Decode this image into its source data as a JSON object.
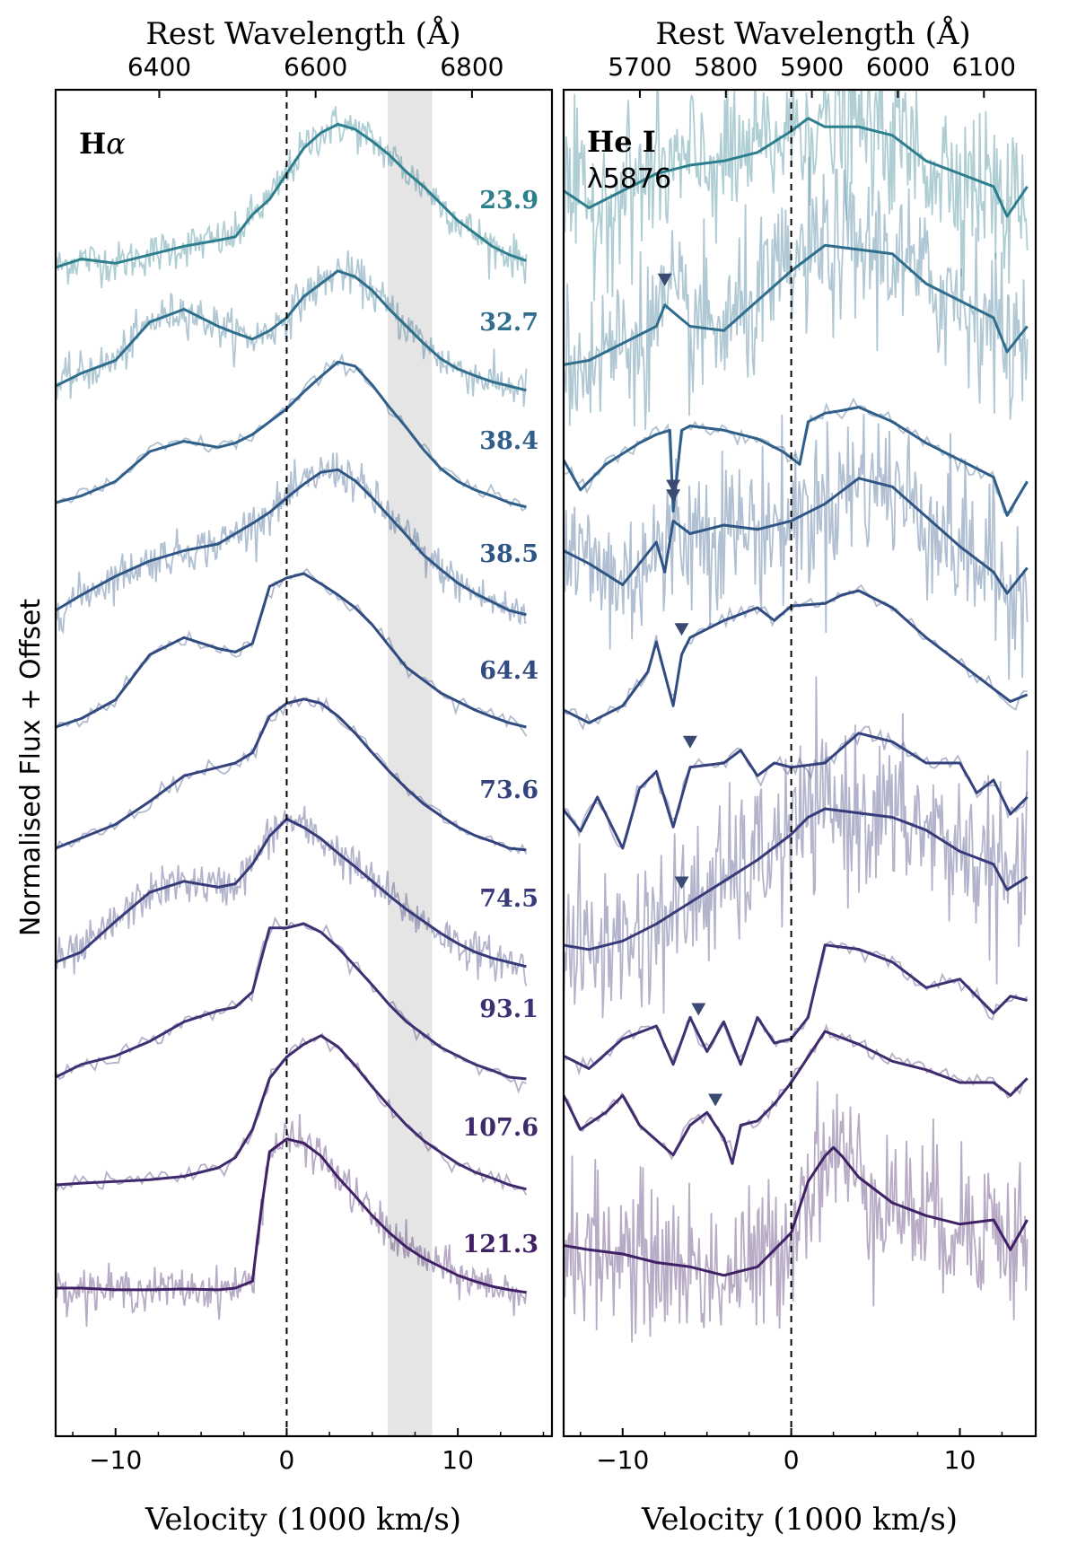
{
  "figure": {
    "ylabel": "Normalised Flux + Offset"
  },
  "chart_data": [
    {
      "type": "line",
      "panel": "left",
      "label_bold": "H",
      "label_italic": "α",
      "xlabel": "Velocity (1000 km/s)",
      "xlim": [
        -13.5,
        15.5
      ],
      "xticks": [
        -10,
        0,
        10
      ],
      "xticklabels": [
        "−10",
        "0",
        "10"
      ],
      "top_axis_title": "Rest Wavelength (Å)",
      "top_ticks": [
        6400,
        6600,
        6800
      ],
      "top_ticklabels": [
        "6400",
        "6600",
        "6800"
      ],
      "center_wavelength": 6563,
      "vline_velocity": 0,
      "shaded_band": [
        5.9,
        8.5
      ],
      "grid": false,
      "epochs": [
        "23.9",
        "32.7",
        "38.4",
        "38.5",
        "64.4",
        "73.6",
        "74.5",
        "93.1",
        "107.6",
        "121.3"
      ],
      "colors": [
        "#2e7f8e",
        "#2f6e8d",
        "#2f5f8a",
        "#305686",
        "#324c82",
        "#34437d",
        "#373b79",
        "#3a3273",
        "#3e2a6d",
        "#412166"
      ],
      "noisy": [
        true,
        true,
        false,
        true,
        false,
        false,
        true,
        false,
        false,
        true
      ],
      "series": [
        {
          "name": "23.9",
          "x": [
            -13.5,
            -12,
            -10,
            -8,
            -6,
            -4,
            -3,
            -2,
            -1,
            0,
            1,
            2,
            3,
            4,
            5,
            6,
            7,
            8,
            9,
            10,
            11,
            12,
            13,
            14
          ],
          "y": [
            0.3,
            0.4,
            0.35,
            0.45,
            0.55,
            0.62,
            0.66,
            0.92,
            1.1,
            1.4,
            1.7,
            1.88,
            1.98,
            1.92,
            1.78,
            1.62,
            1.42,
            1.25,
            1.05,
            0.85,
            0.7,
            0.55,
            0.45,
            0.38
          ]
        },
        {
          "name": "32.7",
          "x": [
            -13.5,
            -12,
            -10,
            -8,
            -6,
            -4,
            -3,
            -2,
            -1,
            0,
            1,
            2,
            3,
            4,
            5,
            6,
            7,
            8,
            9,
            10,
            11,
            12,
            13,
            14
          ],
          "y": [
            0.3,
            0.45,
            0.6,
            1.05,
            1.2,
            1.0,
            0.92,
            0.85,
            0.95,
            1.1,
            1.35,
            1.5,
            1.65,
            1.58,
            1.42,
            1.2,
            1.0,
            0.8,
            0.62,
            0.5,
            0.42,
            0.35,
            0.3,
            0.25
          ]
        },
        {
          "name": "38.4",
          "x": [
            -13.5,
            -12,
            -10,
            -8,
            -6,
            -4,
            -3,
            -2,
            -1,
            0,
            1,
            2,
            3,
            4,
            5,
            6,
            7,
            8,
            9,
            10,
            11,
            12,
            13,
            14
          ],
          "y": [
            0.3,
            0.38,
            0.55,
            0.9,
            1.02,
            0.95,
            1.0,
            1.1,
            1.25,
            1.4,
            1.6,
            1.78,
            1.95,
            1.9,
            1.68,
            1.42,
            1.18,
            0.92,
            0.7,
            0.55,
            0.45,
            0.38,
            0.3,
            0.25
          ]
        },
        {
          "name": "38.5",
          "x": [
            -13.5,
            -12,
            -10,
            -8,
            -6,
            -4,
            -3,
            -2,
            -1,
            0,
            1,
            2,
            3,
            4,
            5,
            6,
            7,
            8,
            9,
            10,
            11,
            12,
            13,
            14
          ],
          "y": [
            0.3,
            0.48,
            0.7,
            0.88,
            1.0,
            1.08,
            1.2,
            1.32,
            1.45,
            1.62,
            1.78,
            1.92,
            1.95,
            1.82,
            1.62,
            1.4,
            1.18,
            0.95,
            0.78,
            0.62,
            0.5,
            0.4,
            0.3,
            0.25
          ]
        },
        {
          "name": "64.4",
          "x": [
            -13.5,
            -12,
            -10,
            -8,
            -6,
            -4,
            -3,
            -2,
            -1,
            0,
            1,
            2,
            3,
            4,
            5,
            6,
            7,
            8,
            9,
            10,
            11,
            12,
            13,
            14
          ],
          "y": [
            0.3,
            0.4,
            0.62,
            1.15,
            1.35,
            1.22,
            1.18,
            1.28,
            1.95,
            2.05,
            2.1,
            1.98,
            1.85,
            1.7,
            1.5,
            1.25,
            1.0,
            0.85,
            0.7,
            0.6,
            0.5,
            0.42,
            0.35,
            0.3
          ]
        },
        {
          "name": "73.6",
          "x": [
            -13.5,
            -12,
            -10,
            -8,
            -6,
            -4,
            -3,
            -2,
            -1,
            0,
            1,
            2,
            3,
            4,
            5,
            6,
            7,
            8,
            9,
            10,
            11,
            12,
            13,
            14
          ],
          "y": [
            0.3,
            0.42,
            0.58,
            0.85,
            1.15,
            1.25,
            1.3,
            1.42,
            1.85,
            2.0,
            2.05,
            2.0,
            1.85,
            1.65,
            1.42,
            1.2,
            1.0,
            0.82,
            0.68,
            0.55,
            0.45,
            0.38,
            0.3,
            0.28
          ]
        },
        {
          "name": "74.5",
          "x": [
            -13.5,
            -12,
            -10,
            -8,
            -6,
            -4,
            -3,
            -2,
            -1,
            0,
            1,
            2,
            3,
            4,
            5,
            6,
            7,
            8,
            9,
            10,
            11,
            12,
            13,
            14
          ],
          "y": [
            0.3,
            0.42,
            0.78,
            1.12,
            1.25,
            1.18,
            1.22,
            1.45,
            1.78,
            1.98,
            1.88,
            1.75,
            1.58,
            1.42,
            1.25,
            1.08,
            0.92,
            0.78,
            0.64,
            0.52,
            0.42,
            0.35,
            0.3,
            0.25
          ]
        },
        {
          "name": "93.1",
          "x": [
            -13.5,
            -12,
            -10,
            -8,
            -6,
            -4,
            -3,
            -2,
            -1,
            0,
            1,
            2,
            3,
            4,
            5,
            6,
            7,
            8,
            9,
            10,
            11,
            12,
            13,
            14
          ],
          "y": [
            0.3,
            0.45,
            0.55,
            0.72,
            0.95,
            1.08,
            1.12,
            1.3,
            2.05,
            2.05,
            2.1,
            2.0,
            1.82,
            1.6,
            1.38,
            1.15,
            0.95,
            0.8,
            0.65,
            0.55,
            0.45,
            0.38,
            0.3,
            0.28
          ]
        },
        {
          "name": "107.6",
          "x": [
            -13.5,
            -12,
            -10,
            -8,
            -6,
            -4,
            -3,
            -2,
            -1,
            0,
            1,
            2,
            3,
            4,
            5,
            6,
            7,
            8,
            9,
            10,
            11,
            12,
            13,
            14
          ],
          "y": [
            0.3,
            0.32,
            0.34,
            0.36,
            0.4,
            0.5,
            0.62,
            0.95,
            1.55,
            1.8,
            1.95,
            2.05,
            1.92,
            1.7,
            1.45,
            1.22,
            1.0,
            0.82,
            0.68,
            0.55,
            0.45,
            0.38,
            0.3,
            0.25
          ]
        },
        {
          "name": "121.3",
          "x": [
            -13.5,
            -12,
            -10,
            -8,
            -6,
            -4,
            -3,
            -2,
            -1.5,
            -1,
            0,
            1,
            2,
            3,
            4,
            5,
            6,
            7,
            8,
            9,
            10,
            11,
            12,
            13,
            14
          ],
          "y": [
            0.3,
            0.3,
            0.28,
            0.28,
            0.29,
            0.28,
            0.3,
            0.38,
            1.2,
            1.9,
            2.05,
            2.0,
            1.85,
            1.6,
            1.38,
            1.15,
            0.95,
            0.78,
            0.65,
            0.55,
            0.45,
            0.38,
            0.32,
            0.28,
            0.25
          ]
        }
      ]
    },
    {
      "type": "line",
      "panel": "right",
      "label_bold": "He I",
      "label_line2": "λ5876",
      "xlabel": "Velocity (1000 km/s)",
      "xlim": [
        -13.5,
        14.5
      ],
      "xticks": [
        -10,
        0,
        10
      ],
      "xticklabels": [
        "−10",
        "0",
        "10"
      ],
      "top_axis_title": "Rest Wavelength (Å)",
      "top_ticks": [
        5700,
        5800,
        5900,
        6000,
        6100
      ],
      "top_ticklabels": [
        "5700",
        "5800",
        "5900",
        "6000",
        "6100"
      ],
      "center_wavelength": 5876,
      "vline_velocity": 0,
      "grid": false,
      "epochs": [
        "23.9",
        "32.7",
        "38.4",
        "38.5",
        "64.4",
        "73.6",
        "74.5",
        "93.1",
        "107.6",
        "121.3"
      ],
      "colors": [
        "#2e7f8e",
        "#2f6e8d",
        "#2f5f8a",
        "#305686",
        "#324c82",
        "#34437d",
        "#373b79",
        "#3a3273",
        "#3e2a6d",
        "#412166"
      ],
      "noisy": [
        true,
        true,
        false,
        true,
        false,
        false,
        true,
        false,
        false,
        true
      ],
      "markers_velocity": [
        null,
        -7.5,
        -7.0,
        -7.0,
        -6.5,
        -6.0,
        -6.5,
        -5.5,
        -4.5,
        null
      ],
      "series": [
        {
          "name": "23.9",
          "x": [
            -13.5,
            -12,
            -10,
            -8,
            -6,
            -4,
            -2,
            0,
            1,
            2,
            4,
            6,
            8,
            10,
            12,
            12.8,
            14
          ],
          "y": [
            1.2,
            1.0,
            1.2,
            1.4,
            1.5,
            1.55,
            1.65,
            1.9,
            2.05,
            1.95,
            1.95,
            1.85,
            1.55,
            1.4,
            1.25,
            0.9,
            1.25
          ]
        },
        {
          "name": "32.7",
          "x": [
            -13.5,
            -12,
            -10,
            -8,
            -7.5,
            -6,
            -4,
            -2,
            0,
            2,
            4,
            6,
            8,
            10,
            12,
            12.8,
            14
          ],
          "y": [
            0.55,
            0.6,
            0.8,
            1.0,
            1.25,
            1.0,
            0.95,
            1.3,
            1.65,
            1.95,
            1.9,
            1.85,
            1.5,
            1.3,
            1.1,
            0.7,
            1.0
          ]
        },
        {
          "name": "38.4",
          "x": [
            -13.5,
            -12.5,
            -11,
            -9,
            -8,
            -7.2,
            -7.0,
            -6.5,
            -6,
            -4,
            -2,
            -0.5,
            0.5,
            1,
            2,
            3,
            4,
            6,
            8,
            10,
            12,
            12.8,
            14
          ],
          "y": [
            0.8,
            0.45,
            0.75,
            1.0,
            1.1,
            1.15,
            0.2,
            1.15,
            1.2,
            1.15,
            1.05,
            0.9,
            0.75,
            1.25,
            1.35,
            1.38,
            1.42,
            1.25,
            1.0,
            0.8,
            0.6,
            0.15,
            0.55
          ]
        },
        {
          "name": "38.5",
          "x": [
            -13.5,
            -12,
            -10,
            -8,
            -7.5,
            -7,
            -6,
            -4,
            -2,
            0,
            2,
            4,
            6,
            8,
            10,
            12,
            12.8,
            14
          ],
          "y": [
            1.0,
            0.85,
            0.6,
            1.1,
            0.75,
            1.35,
            1.2,
            1.3,
            1.25,
            1.35,
            1.55,
            1.85,
            1.75,
            1.4,
            1.05,
            0.75,
            0.5,
            0.8
          ]
        },
        {
          "name": "64.4",
          "x": [
            -13.5,
            -12,
            -10,
            -8.5,
            -8,
            -7,
            -6.5,
            -6,
            -4,
            -2,
            -1,
            0,
            2,
            3,
            4,
            6,
            8,
            10,
            12,
            13,
            14
          ],
          "y": [
            0.5,
            0.35,
            0.55,
            0.95,
            1.3,
            0.55,
            1.15,
            1.35,
            1.55,
            1.7,
            1.55,
            1.72,
            1.75,
            1.85,
            1.9,
            1.7,
            1.35,
            1.05,
            0.75,
            0.6,
            0.68
          ]
        },
        {
          "name": "73.6",
          "x": [
            -13.5,
            -12.5,
            -11.5,
            -10,
            -9,
            -8,
            -7,
            -6,
            -4,
            -3,
            -2,
            -1,
            0,
            2,
            4,
            6,
            8,
            10,
            11,
            12,
            13,
            14
          ],
          "y": [
            0.75,
            0.5,
            0.9,
            0.3,
            1.0,
            1.2,
            0.55,
            1.25,
            1.3,
            1.45,
            1.15,
            1.3,
            1.25,
            1.3,
            1.65,
            1.55,
            1.3,
            1.3,
            0.95,
            1.1,
            0.7,
            0.9
          ]
        },
        {
          "name": "74.5",
          "x": [
            -13.5,
            -12,
            -10,
            -8,
            -6,
            -4,
            -2,
            0,
            1,
            2,
            4,
            6,
            8,
            10,
            12,
            12.8,
            14
          ],
          "y": [
            0.5,
            0.45,
            0.55,
            0.75,
            1.0,
            1.25,
            1.5,
            1.8,
            2.0,
            2.1,
            2.05,
            2.0,
            1.85,
            1.6,
            1.45,
            1.15,
            1.3
          ]
        },
        {
          "name": "93.1",
          "x": [
            -13.5,
            -12,
            -10,
            -8,
            -7,
            -6,
            -5,
            -4,
            -3,
            -2,
            -1,
            0,
            1,
            2,
            4,
            6,
            8,
            10,
            12,
            13,
            14
          ],
          "y": [
            0.55,
            0.4,
            0.75,
            0.9,
            0.45,
            1.0,
            0.6,
            0.95,
            0.45,
            1.0,
            0.7,
            0.75,
            1.0,
            1.85,
            1.8,
            1.65,
            1.35,
            1.45,
            1.05,
            1.25,
            1.2
          ]
        },
        {
          "name": "107.6",
          "x": [
            -13.5,
            -12.5,
            -11,
            -10,
            -9,
            -7,
            -6,
            -5,
            -4,
            -3.5,
            -3,
            -2,
            -1,
            0,
            1,
            2,
            4,
            6,
            8,
            10,
            12,
            13,
            14
          ],
          "y": [
            1.35,
            0.95,
            1.15,
            1.35,
            1.0,
            0.65,
            1.0,
            1.15,
            0.85,
            0.55,
            1.0,
            1.05,
            1.25,
            1.5,
            1.8,
            2.1,
            1.95,
            1.75,
            1.65,
            1.5,
            1.5,
            1.35,
            1.55
          ]
        },
        {
          "name": "121.3",
          "x": [
            -13.5,
            -12,
            -10,
            -8,
            -6,
            -4,
            -2,
            0,
            1,
            2,
            2.5,
            3,
            4,
            6,
            8,
            10,
            12,
            13,
            14
          ],
          "y": [
            0.8,
            0.75,
            0.7,
            0.6,
            0.55,
            0.45,
            0.55,
            0.95,
            1.55,
            1.85,
            1.95,
            1.85,
            1.6,
            1.3,
            1.15,
            1.05,
            1.1,
            0.75,
            1.1
          ]
        }
      ]
    }
  ]
}
